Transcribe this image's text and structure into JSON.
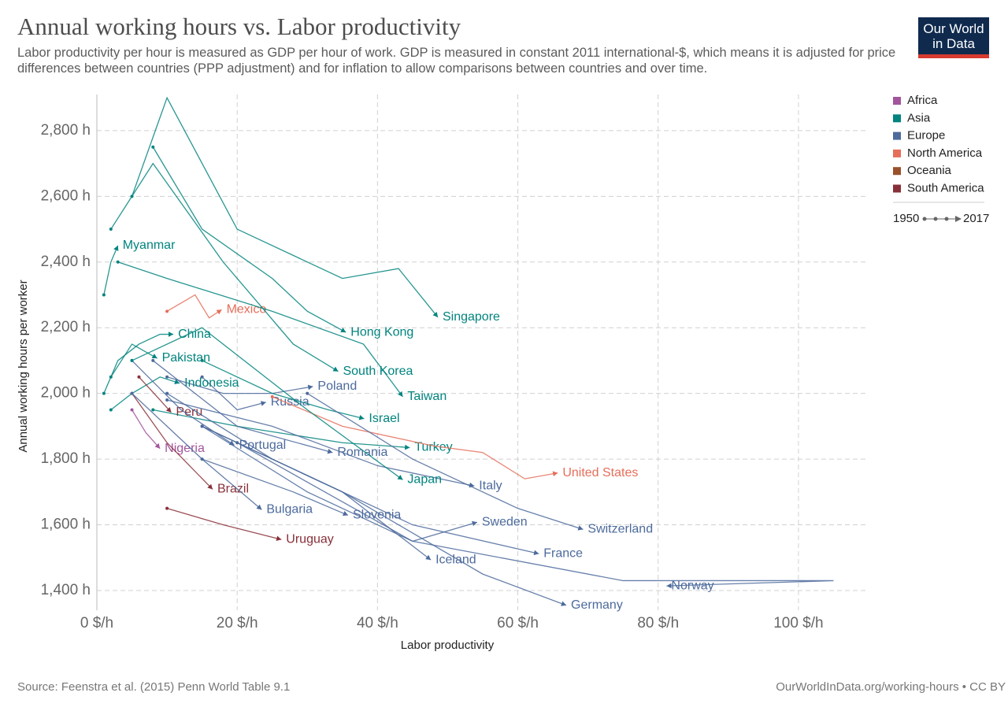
{
  "header": {
    "logo_line1": "Our World",
    "logo_line2": "in Data"
  },
  "footer": {
    "source": "Source: Feenstra et al. (2015) Penn World Table 9.1",
    "url": "OurWorldInData.org/working-hours • CC BY"
  },
  "chart_data": {
    "type": "line",
    "title": "Annual working hours vs. Labor productivity",
    "subtitle": "Labor productivity per hour is measured as GDP per hour of work. GDP is measured in constant 2011 international-$, which means it is adjusted for price differences between countries (PPP adjustment) and for inflation to allow comparisons between countries and over time.",
    "x_label": "Labor productivity",
    "y_label": "Annual working hours per worker",
    "xlim": [
      0,
      110
    ],
    "ylim": [
      1340,
      2910
    ],
    "xticks": [
      {
        "value": 0,
        "label": "0 $/h"
      },
      {
        "value": 20,
        "label": "20 $/h"
      },
      {
        "value": 40,
        "label": "40 $/h"
      },
      {
        "value": 60,
        "label": "60 $/h"
      },
      {
        "value": 80,
        "label": "80 $/h"
      },
      {
        "value": 100,
        "label": "100 $/h"
      }
    ],
    "yticks": [
      {
        "value": 1400,
        "label": "1,400 h"
      },
      {
        "value": 1600,
        "label": "1,600 h"
      },
      {
        "value": 1800,
        "label": "1,800 h"
      },
      {
        "value": 2000,
        "label": "2,000 h"
      },
      {
        "value": 2200,
        "label": "2,200 h"
      },
      {
        "value": 2400,
        "label": "2,400 h"
      },
      {
        "value": 2600,
        "label": "2,600 h"
      },
      {
        "value": 2800,
        "label": "2,800 h"
      }
    ],
    "grid": true,
    "legend": [
      {
        "name": "Africa",
        "color": "#a2559c"
      },
      {
        "name": "Asia",
        "color": "#00847e"
      },
      {
        "name": "Europe",
        "color": "#4c6a9c"
      },
      {
        "name": "North America",
        "color": "#e56e5a"
      },
      {
        "name": "Oceania",
        "color": "#9a5129"
      },
      {
        "name": "South America",
        "color": "#883039"
      }
    ],
    "time_range": [
      1950,
      2017
    ],
    "series": [
      {
        "name": "Myanmar",
        "color": "#00847e",
        "x": [
          1,
          2,
          3
        ],
        "y": [
          2300,
          2400,
          2450
        ]
      },
      {
        "name": "Mexico",
        "color": "#e56e5a",
        "x": [
          10,
          14,
          16,
          17.8
        ],
        "y": [
          2250,
          2300,
          2230,
          2255
        ]
      },
      {
        "name": "China",
        "color": "#00847e",
        "x": [
          1,
          3,
          6,
          9,
          10.9
        ],
        "y": [
          2000,
          2100,
          2150,
          2180,
          2180
        ]
      },
      {
        "name": "Singapore",
        "color": "#00847e",
        "x": [
          5,
          10,
          20,
          35,
          43,
          48.6
        ],
        "y": [
          2600,
          2900,
          2500,
          2350,
          2380,
          2232
        ]
      },
      {
        "name": "Hong Kong",
        "color": "#00847e",
        "x": [
          8,
          15,
          25,
          30,
          35.5
        ],
        "y": [
          2750,
          2500,
          2350,
          2250,
          2186
        ]
      },
      {
        "name": "South Korea",
        "color": "#00847e",
        "x": [
          2,
          8,
          18,
          28,
          34.4
        ],
        "y": [
          2500,
          2700,
          2400,
          2150,
          2067
        ]
      },
      {
        "name": "Taiwan",
        "color": "#00847e",
        "x": [
          3,
          10,
          25,
          38,
          43.6
        ],
        "y": [
          2400,
          2350,
          2250,
          2150,
          1990
        ]
      },
      {
        "name": "Poland",
        "color": "#4c6a9c",
        "x": [
          10,
          18,
          25,
          30.8
        ],
        "y": [
          2050,
          2000,
          2000,
          2021
        ]
      },
      {
        "name": "Russia",
        "color": "#4c6a9c",
        "x": [
          15,
          20,
          24.1
        ],
        "y": [
          2050,
          1950,
          1973
        ]
      },
      {
        "name": "Indonesia",
        "color": "#00847e",
        "x": [
          2,
          5,
          9,
          11.8
        ],
        "y": [
          1950,
          2000,
          2050,
          2031
        ]
      },
      {
        "name": "Pakistan",
        "color": "#00847e",
        "x": [
          2,
          5,
          8.6
        ],
        "y": [
          2050,
          2150,
          2107
        ]
      },
      {
        "name": "Israel",
        "color": "#00847e",
        "x": [
          15,
          25,
          33,
          38.1
        ],
        "y": [
          2100,
          2000,
          1950,
          1923
        ]
      },
      {
        "name": "Peru",
        "color": "#883039",
        "x": [
          6,
          9,
          10.6
        ],
        "y": [
          2050,
          1980,
          1942
        ]
      },
      {
        "name": "Turkey",
        "color": "#00847e",
        "x": [
          8,
          20,
          35,
          44.6
        ],
        "y": [
          1950,
          1900,
          1850,
          1835
        ]
      },
      {
        "name": "United States",
        "color": "#e56e5a",
        "x": [
          25,
          35,
          48,
          55,
          61,
          65.7
        ],
        "y": [
          1990,
          1900,
          1840,
          1820,
          1740,
          1758
        ]
      },
      {
        "name": "Nigeria",
        "color": "#a2559c",
        "x": [
          5,
          7,
          9
        ],
        "y": [
          1950,
          1880,
          1832
        ]
      },
      {
        "name": "Portugal",
        "color": "#4c6a9c",
        "x": [
          5,
          12,
          19.6
        ],
        "y": [
          2100,
          1950,
          1842
        ]
      },
      {
        "name": "Romania",
        "color": "#4c6a9c",
        "x": [
          8,
          20,
          33.6
        ],
        "y": [
          2100,
          1900,
          1820
        ]
      },
      {
        "name": "Italy",
        "color": "#4c6a9c",
        "x": [
          10,
          25,
          40,
          53.8
        ],
        "y": [
          1980,
          1900,
          1780,
          1718
        ]
      },
      {
        "name": "Japan",
        "color": "#00847e",
        "x": [
          5,
          15,
          30,
          43.6
        ],
        "y": [
          2100,
          2200,
          1950,
          1737
        ]
      },
      {
        "name": "Brazil",
        "color": "#883039",
        "x": [
          5,
          10,
          16.5
        ],
        "y": [
          2000,
          1850,
          1708
        ]
      },
      {
        "name": "Bulgaria",
        "color": "#4c6a9c",
        "x": [
          5,
          15,
          23.5
        ],
        "y": [
          2000,
          1800,
          1646
        ]
      },
      {
        "name": "Slovenia",
        "color": "#4c6a9c",
        "x": [
          15,
          28,
          35.8
        ],
        "y": [
          1800,
          1700,
          1629
        ]
      },
      {
        "name": "Sweden",
        "color": "#4c6a9c",
        "x": [
          15,
          30,
          45,
          54.2
        ],
        "y": [
          1900,
          1700,
          1550,
          1608
        ]
      },
      {
        "name": "Switzerland",
        "color": "#4c6a9c",
        "x": [
          30,
          45,
          60,
          69.3
        ],
        "y": [
          2000,
          1800,
          1650,
          1586
        ]
      },
      {
        "name": "Uruguay",
        "color": "#883039",
        "x": [
          10,
          18,
          26.3
        ],
        "y": [
          1650,
          1600,
          1555
        ]
      },
      {
        "name": "France",
        "color": "#4c6a9c",
        "x": [
          10,
          25,
          45,
          63
        ],
        "y": [
          2000,
          1800,
          1600,
          1512
        ]
      },
      {
        "name": "Iceland",
        "color": "#4c6a9c",
        "x": [
          15,
          35,
          47.6
        ],
        "y": [
          1900,
          1700,
          1493
        ]
      },
      {
        "name": "Norway",
        "color": "#4c6a9c",
        "x": [
          20,
          45,
          75,
          105,
          81.2
        ],
        "y": [
          1850,
          1550,
          1430,
          1430,
          1414
        ]
      },
      {
        "name": "Germany",
        "color": "#4c6a9c",
        "x": [
          15,
          35,
          55,
          66.9
        ],
        "y": [
          1900,
          1700,
          1450,
          1355
        ]
      }
    ]
  }
}
